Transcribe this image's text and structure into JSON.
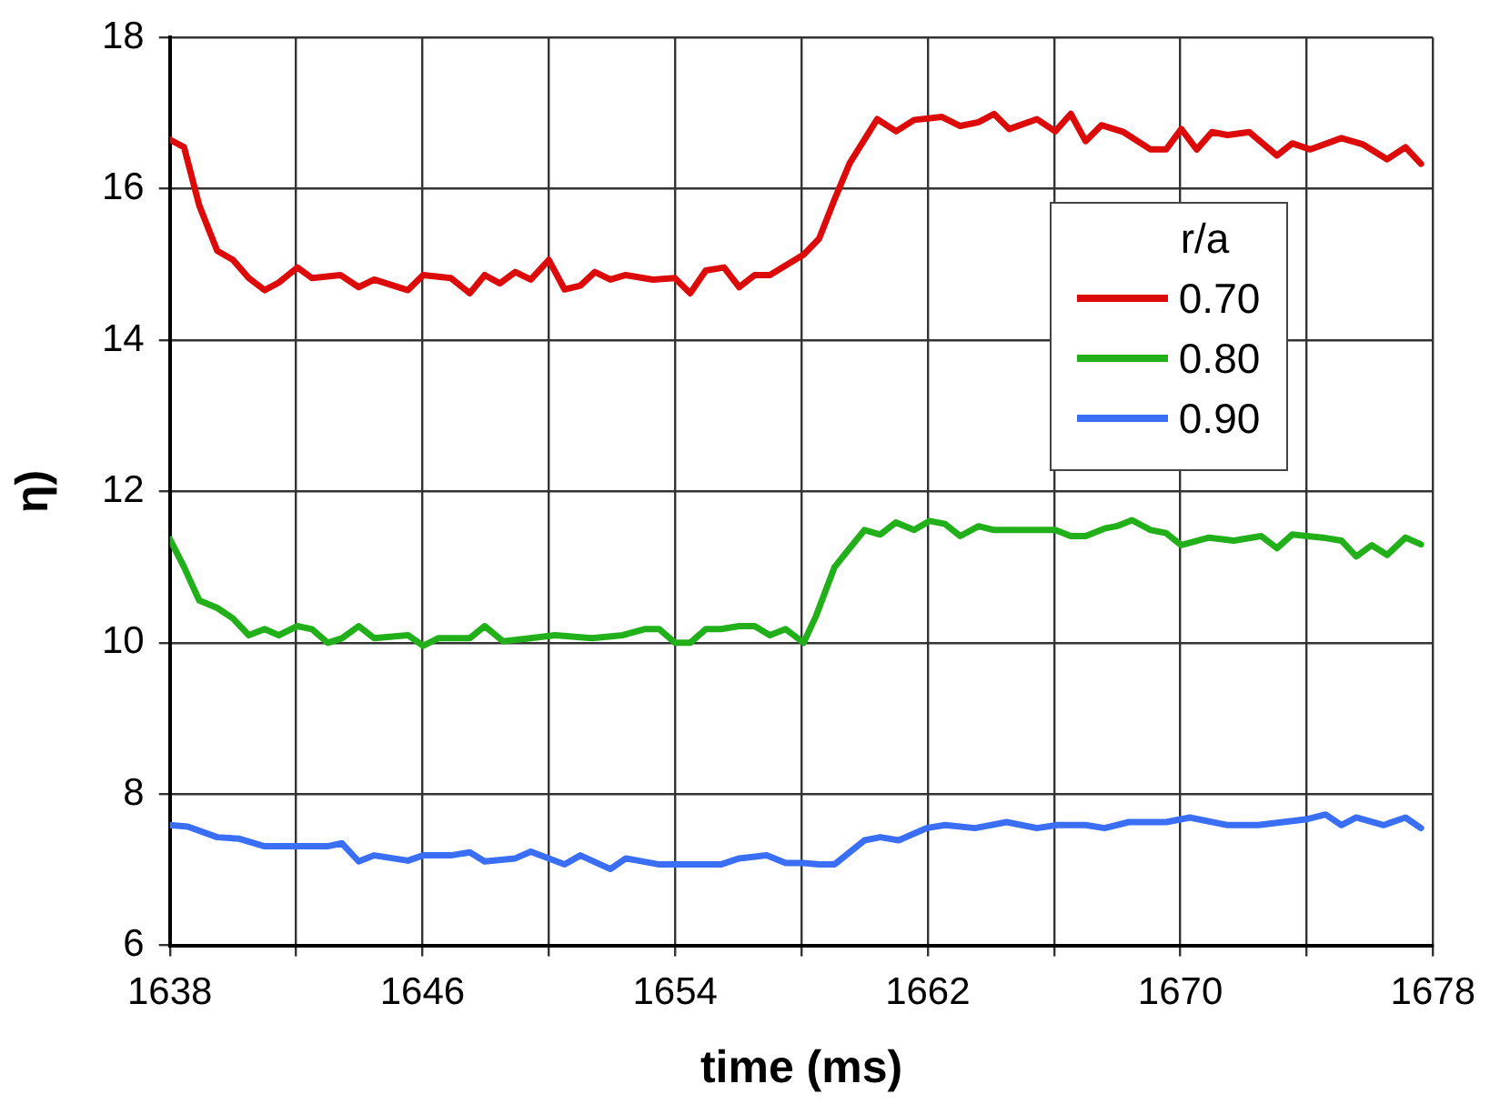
{
  "chart_data": {
    "type": "line",
    "xlabel": "time (ms)",
    "ylabel": "η)",
    "legend_title": "r/a",
    "legend": "top right",
    "grid": true,
    "marker": "none",
    "line_style": "solid",
    "xlim": [
      1638,
      1678
    ],
    "xticks": [
      1638,
      {
        "value": 1642,
        "label": null
      },
      1646,
      {
        "value": 1650,
        "label": null
      },
      1654,
      {
        "value": 1658,
        "label": null
      },
      1662,
      {
        "value": 1666,
        "label": null
      },
      1670,
      {
        "value": 1674,
        "label": null
      },
      1678
    ],
    "ylim": [
      6,
      18
    ],
    "yticks": [
      6,
      8,
      10,
      12,
      14,
      16,
      18
    ],
    "series": [
      {
        "name": "0.70",
        "color": "#dd0a0a",
        "x": [
          1638,
          1638.45,
          1638.93,
          1639.5,
          1640,
          1640.5,
          1641,
          1641.45,
          1642.04,
          1642.5,
          1643.4,
          1643.98,
          1644.47,
          1645.54,
          1646.02,
          1646.9,
          1647.5,
          1647.97,
          1648.45,
          1648.94,
          1649.43,
          1650,
          1650.5,
          1651,
          1651.46,
          1651.95,
          1652.44,
          1653.3,
          1653.99,
          1654.48,
          1654.97,
          1655.55,
          1656.03,
          1656.52,
          1657,
          1658.07,
          1658.56,
          1659.05,
          1659.53,
          1660.4,
          1661,
          1661.57,
          1662.45,
          1663.03,
          1663.61,
          1664.1,
          1664.58,
          1665.46,
          1666.04,
          1666.53,
          1667,
          1667.5,
          1668.2,
          1669.06,
          1669.55,
          1670.03,
          1670.52,
          1671,
          1671.5,
          1672.18,
          1673.06,
          1673.54,
          1674.12,
          1675.1,
          1675.77,
          1676.55,
          1677.13,
          1677.62
        ],
        "values": [
          16.65,
          16.55,
          15.78,
          15.18,
          15.06,
          14.82,
          14.66,
          14.76,
          14.96,
          14.82,
          14.86,
          14.7,
          14.8,
          14.66,
          14.86,
          14.82,
          14.62,
          14.86,
          14.75,
          14.9,
          14.8,
          15.06,
          14.67,
          14.72,
          14.9,
          14.8,
          14.86,
          14.8,
          14.82,
          14.62,
          14.92,
          14.96,
          14.7,
          14.86,
          14.86,
          15.13,
          15.34,
          15.86,
          16.34,
          16.92,
          16.76,
          16.91,
          16.95,
          16.83,
          16.88,
          16.99,
          16.79,
          16.92,
          16.76,
          16.99,
          16.63,
          16.84,
          16.75,
          16.52,
          16.52,
          16.79,
          16.52,
          16.75,
          16.71,
          16.75,
          16.44,
          16.6,
          16.52,
          16.67,
          16.59,
          16.39,
          16.55,
          16.33
        ]
      },
      {
        "name": "0.80",
        "color": "#22b01a",
        "x": [
          1638,
          1638.45,
          1638.93,
          1639.5,
          1640,
          1640.5,
          1641,
          1641.45,
          1642.04,
          1642.5,
          1643,
          1643.45,
          1643.98,
          1644.47,
          1645.54,
          1646.02,
          1646.5,
          1647.5,
          1647.97,
          1648.55,
          1649.43,
          1650.2,
          1651.37,
          1652.35,
          1653.03,
          1653.5,
          1654,
          1654.48,
          1654.97,
          1655.45,
          1656.03,
          1656.52,
          1657,
          1657.5,
          1658.07,
          1658.47,
          1659.05,
          1659.53,
          1660,
          1660.5,
          1660.99,
          1661.57,
          1662.06,
          1662.55,
          1663.03,
          1663.61,
          1664.1,
          1666.04,
          1666.53,
          1667,
          1667.6,
          1667.98,
          1668.47,
          1669.06,
          1669.55,
          1670.03,
          1670.91,
          1671.69,
          1672.56,
          1673.06,
          1673.54,
          1674.51,
          1675.1,
          1675.57,
          1676.06,
          1676.55,
          1677.13,
          1677.62
        ],
        "values": [
          11.37,
          11,
          10.56,
          10.46,
          10.32,
          10.1,
          10.18,
          10.1,
          10.22,
          10.18,
          10,
          10.06,
          10.22,
          10.06,
          10.1,
          9.96,
          10.06,
          10.06,
          10.22,
          10.02,
          10.06,
          10.1,
          10.06,
          10.1,
          10.18,
          10.18,
          10,
          10,
          10.18,
          10.18,
          10.22,
          10.22,
          10.1,
          10.18,
          10,
          10.36,
          11,
          11.25,
          11.49,
          11.43,
          11.59,
          11.49,
          11.61,
          11.57,
          11.41,
          11.54,
          11.49,
          11.49,
          11.41,
          11.41,
          11.51,
          11.54,
          11.62,
          11.49,
          11.45,
          11.29,
          11.39,
          11.35,
          11.41,
          11.25,
          11.43,
          11.39,
          11.35,
          11.14,
          11.29,
          11.16,
          11.39,
          11.3
        ]
      },
      {
        "name": "0.90",
        "color": "#3a6ef5",
        "x": [
          1638,
          1638.57,
          1639.5,
          1640.2,
          1641,
          1642.04,
          1643,
          1643.45,
          1643.98,
          1644.47,
          1645.54,
          1646.02,
          1646.9,
          1647.5,
          1647.97,
          1648.94,
          1649.43,
          1650.5,
          1651,
          1651.95,
          1652.44,
          1653.5,
          1655.45,
          1656.03,
          1656.9,
          1657.5,
          1658.07,
          1658.56,
          1659.05,
          1660,
          1660.5,
          1661.08,
          1661.96,
          1662.55,
          1663.5,
          1664.5,
          1665.46,
          1666.1,
          1667,
          1667.6,
          1668.37,
          1669.55,
          1670.3,
          1671.5,
          1672.47,
          1673.25,
          1674.03,
          1674.6,
          1675.1,
          1675.57,
          1676.44,
          1677.13,
          1677.62
        ],
        "values": [
          7.59,
          7.57,
          7.43,
          7.41,
          7.31,
          7.31,
          7.31,
          7.35,
          7.11,
          7.19,
          7.12,
          7.19,
          7.19,
          7.23,
          7.11,
          7.15,
          7.24,
          7.07,
          7.19,
          7.01,
          7.15,
          7.07,
          7.07,
          7.15,
          7.19,
          7.09,
          7.09,
          7.07,
          7.07,
          7.39,
          7.43,
          7.39,
          7.55,
          7.59,
          7.55,
          7.63,
          7.55,
          7.59,
          7.59,
          7.55,
          7.63,
          7.63,
          7.69,
          7.59,
          7.59,
          7.63,
          7.67,
          7.73,
          7.59,
          7.69,
          7.59,
          7.69,
          7.55
        ]
      }
    ]
  }
}
